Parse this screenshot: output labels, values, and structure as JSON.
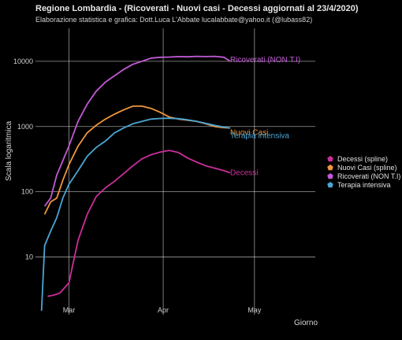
{
  "chart_data": {
    "type": "line",
    "title": "Regione Lombardia  - (Ricoverati - Nuovi casi - Decessi aggiornati al 23/4/2020)",
    "subtitle": "Elaborazione statistica e grafica: Dott.Luca L'Abbate  lucalabbate@yahoo.it  (@lubass82)",
    "xlabel": "Giorno",
    "ylabel": "Scala logaritmica",
    "y_scale": "log",
    "ylim": [
      1.3,
      32000
    ],
    "xlim": [
      "2020-02-19",
      "2020-05-21"
    ],
    "grid": true,
    "legend_position": "right",
    "x_ticks": [
      {
        "date": "2020-03-01",
        "label": "Mar"
      },
      {
        "date": "2020-04-01",
        "label": "Apr"
      },
      {
        "date": "2020-05-01",
        "label": "May"
      }
    ],
    "y_ticks": [
      {
        "value": 10,
        "label": "10"
      },
      {
        "value": 100,
        "label": "100"
      },
      {
        "value": 1000,
        "label": "1000"
      },
      {
        "value": 10000,
        "label": "10000"
      }
    ],
    "series": [
      {
        "name": "Decessi (spline)",
        "end_label": "Decessi",
        "color": "#cc2e9a",
        "x": [
          "2020-02-23",
          "2020-02-25",
          "2020-02-27",
          "2020-03-01",
          "2020-03-04",
          "2020-03-07",
          "2020-03-10",
          "2020-03-13",
          "2020-03-16",
          "2020-03-19",
          "2020-03-22",
          "2020-03-25",
          "2020-03-28",
          "2020-03-31",
          "2020-04-03",
          "2020-04-06",
          "2020-04-09",
          "2020-04-12",
          "2020-04-15",
          "2020-04-18",
          "2020-04-21",
          "2020-04-23"
        ],
        "y": [
          2.5,
          2.6,
          2.8,
          4,
          18,
          45,
          85,
          115,
          145,
          190,
          250,
          320,
          370,
          405,
          430,
          400,
          330,
          285,
          250,
          230,
          210,
          195
        ]
      },
      {
        "name": "Nuovi Casi (spline)",
        "end_label": "Nuovi Casi",
        "color": "#f0963c",
        "x": [
          "2020-02-22",
          "2020-02-24",
          "2020-02-26",
          "2020-02-28",
          "2020-03-01",
          "2020-03-04",
          "2020-03-07",
          "2020-03-10",
          "2020-03-13",
          "2020-03-16",
          "2020-03-19",
          "2020-03-22",
          "2020-03-25",
          "2020-03-28",
          "2020-03-31",
          "2020-04-03",
          "2020-04-06",
          "2020-04-09",
          "2020-04-12",
          "2020-04-15",
          "2020-04-18",
          "2020-04-21",
          "2020-04-23"
        ],
        "y": [
          45,
          70,
          80,
          150,
          260,
          500,
          800,
          1050,
          1300,
          1550,
          1800,
          2050,
          2050,
          1900,
          1650,
          1400,
          1300,
          1250,
          1200,
          1100,
          1000,
          960,
          950
        ]
      },
      {
        "name": "Ricoverati (NON T.I)",
        "end_label": "Ricoverati (NON T.I)",
        "color": "#c25ad6",
        "x": [
          "2020-02-22",
          "2020-02-24",
          "2020-02-26",
          "2020-02-28",
          "2020-03-01",
          "2020-03-04",
          "2020-03-07",
          "2020-03-10",
          "2020-03-13",
          "2020-03-16",
          "2020-03-19",
          "2020-03-22",
          "2020-03-25",
          "2020-03-28",
          "2020-03-31",
          "2020-04-03",
          "2020-04-06",
          "2020-04-09",
          "2020-04-12",
          "2020-04-15",
          "2020-04-18",
          "2020-04-21",
          "2020-04-23"
        ],
        "y": [
          60,
          80,
          180,
          300,
          500,
          1200,
          2200,
          3500,
          4800,
          6000,
          7500,
          9000,
          10000,
          11200,
          11500,
          11600,
          11800,
          11700,
          11900,
          11800,
          11900,
          11500,
          10000
        ]
      },
      {
        "name": "Terapia intensiva",
        "end_label": "Terapia intensiva",
        "color": "#4aa6d4",
        "x": [
          "2020-02-21",
          "2020-02-22",
          "2020-02-24",
          "2020-02-26",
          "2020-02-28",
          "2020-03-01",
          "2020-03-04",
          "2020-03-07",
          "2020-03-10",
          "2020-03-13",
          "2020-03-16",
          "2020-03-19",
          "2020-03-22",
          "2020-03-25",
          "2020-03-28",
          "2020-03-31",
          "2020-04-03",
          "2020-04-06",
          "2020-04-09",
          "2020-04-12",
          "2020-04-15",
          "2020-04-18",
          "2020-04-21",
          "2020-04-23"
        ],
        "y": [
          1.5,
          15,
          25,
          40,
          80,
          130,
          210,
          350,
          480,
          600,
          800,
          950,
          1100,
          1200,
          1300,
          1330,
          1340,
          1320,
          1270,
          1200,
          1120,
          1040,
          980,
          950
        ]
      }
    ]
  }
}
